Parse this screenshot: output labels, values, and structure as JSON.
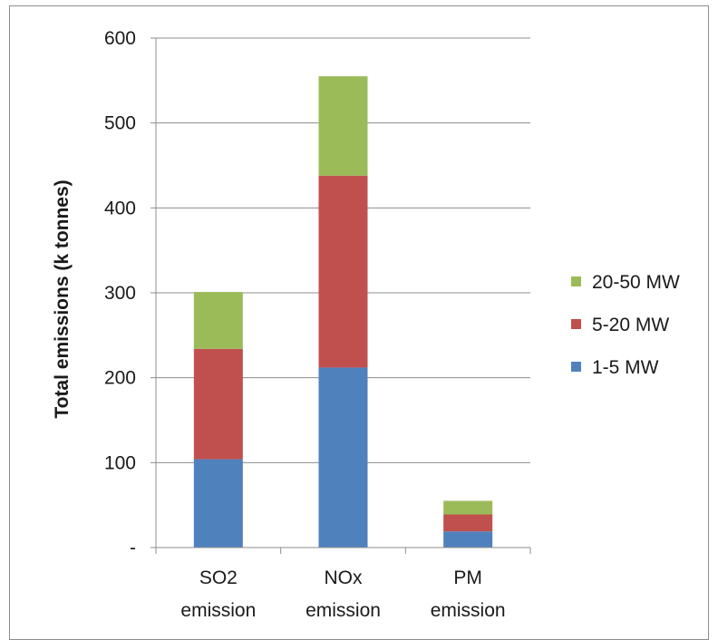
{
  "chart_data": {
    "type": "bar",
    "stacked": true,
    "categories": [
      [
        "SO2",
        "emission"
      ],
      [
        "NOx",
        "emission"
      ],
      [
        "PM",
        "emission"
      ]
    ],
    "series": [
      {
        "name": "1-5 MW",
        "color": "#4f81bd",
        "values": [
          104,
          212,
          19
        ]
      },
      {
        "name": "5-20 MW",
        "color": "#c0504d",
        "values": [
          130,
          226,
          20
        ]
      },
      {
        "name": "20-50 MW",
        "color": "#9bbb59",
        "values": [
          67,
          117,
          16
        ]
      }
    ],
    "ylabel": "Total emissions (k tonnes)",
    "ylim": [
      0,
      600
    ],
    "yticks": [
      0,
      100,
      200,
      300,
      400,
      500,
      600
    ],
    "ytick_labels": [
      "-",
      "100",
      "200",
      "300",
      "400",
      "500",
      "600"
    ],
    "grid": true,
    "legend": "right",
    "legend_order": [
      "20-50 MW",
      "5-20 MW",
      "1-5 MW"
    ]
  }
}
